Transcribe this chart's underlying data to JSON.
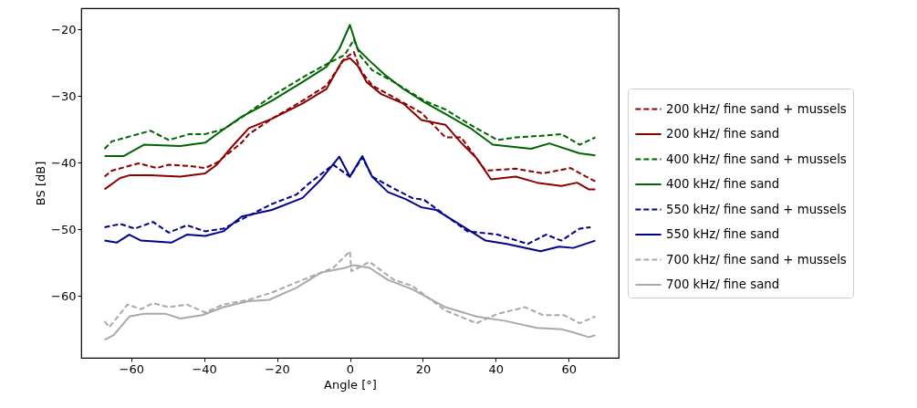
{
  "chart_data": {
    "type": "line",
    "xlabel": "Angle [°]",
    "ylabel": "BS [dB]",
    "xlim": [
      -73.7,
      73.7
    ],
    "ylim": [
      -69.3,
      -16.8
    ],
    "xticks": [
      -60,
      -40,
      -20,
      0,
      20,
      40,
      60
    ],
    "yticks": [
      -60,
      -50,
      -40,
      -30,
      -20
    ],
    "grid": false,
    "legend": "right",
    "marker": "none",
    "series": [
      {
        "name": "200 kHz/ fine sand + mussels",
        "color": "#8b0000",
        "line_style": "dashed",
        "x": [
          -67.3,
          -65.3,
          -58,
          -53,
          -49.7,
          -44,
          -39.7,
          -36.5,
          -29.7,
          -27.7,
          -21.4,
          -13,
          -6.4,
          -1.4,
          1.1,
          2.9,
          6.1,
          12.1,
          19.6,
          26.2,
          30.5,
          37.2,
          45.5,
          53,
          60.5,
          64.8,
          67.3
        ],
        "values": [
          -42.1,
          -41.2,
          -40.1,
          -40.8,
          -40.3,
          -40.5,
          -40.8,
          -40,
          -37,
          -35.7,
          -33.4,
          -30.7,
          -28.4,
          -24.3,
          -23.4,
          -26.1,
          -28.4,
          -30.2,
          -32.5,
          -36.2,
          -36.2,
          -41.2,
          -40.9,
          -41.6,
          -40.8,
          -42.1,
          -42.8
        ]
      },
      {
        "name": "200 kHz/ fine sand",
        "color": "#8b0000",
        "line_style": "solid",
        "x": [
          -67.3,
          -63,
          -60.5,
          -54.7,
          -46.5,
          -39.7,
          -36.5,
          -32.2,
          -27.7,
          -21.4,
          -13,
          -6.4,
          -2.1,
          0,
          2.1,
          4.6,
          8.6,
          14.6,
          19.6,
          26.2,
          30.5,
          34.7,
          38.7,
          45.5,
          51.3,
          58,
          62.3,
          65.5,
          67.3
        ],
        "values": [
          -44,
          -42.3,
          -41.9,
          -41.9,
          -42.1,
          -41.6,
          -40.3,
          -37.5,
          -34.8,
          -33.4,
          -31.1,
          -28.9,
          -24.7,
          -24.3,
          -25.4,
          -27.9,
          -29.7,
          -31.1,
          -33.6,
          -34.3,
          -37,
          -39.3,
          -42.5,
          -42.1,
          -43,
          -43.5,
          -43,
          -44,
          -44
        ]
      },
      {
        "name": "400 kHz/ fine sand + mussels",
        "color": "#006400",
        "line_style": "dashed",
        "x": [
          -67.3,
          -65.3,
          -54.7,
          -49.7,
          -44,
          -39.7,
          -34.7,
          -29.7,
          -21.4,
          -13,
          -6.4,
          -1.4,
          1.1,
          2.9,
          6.1,
          12.1,
          20.4,
          26.2,
          33,
          40.5,
          45.5,
          51.3,
          58,
          63,
          67.3
        ],
        "values": [
          -37.9,
          -36.8,
          -35.2,
          -36.6,
          -35.7,
          -35.7,
          -35,
          -33.2,
          -30,
          -27.2,
          -25.2,
          -23.8,
          -21.5,
          -24,
          -26.1,
          -27.9,
          -30.7,
          -32,
          -34.3,
          -36.6,
          -36.2,
          -36,
          -35.7,
          -37.3,
          -36.2
        ]
      },
      {
        "name": "400 kHz/ fine sand",
        "color": "#006400",
        "line_style": "solid",
        "x": [
          -67.3,
          -62,
          -56.5,
          -46.5,
          -39.7,
          -34.7,
          -29.7,
          -21.4,
          -13,
          -6.4,
          -2.9,
          0,
          2.1,
          5.4,
          9.6,
          14.6,
          20.4,
          26.2,
          33,
          39.2,
          49.7,
          54.7,
          63,
          67.3
        ],
        "values": [
          -39,
          -39,
          -37.3,
          -37.5,
          -37,
          -35,
          -33.1,
          -30.7,
          -27.9,
          -25.6,
          -22.9,
          -19.3,
          -22.9,
          -24.7,
          -26.8,
          -28.9,
          -30.9,
          -32.7,
          -34.8,
          -37.3,
          -37.9,
          -37.1,
          -38.6,
          -38.9
        ]
      },
      {
        "name": "550 kHz/ fine sand + mussels",
        "color": "#00008b",
        "line_style": "dashed",
        "x": [
          -67.3,
          -63,
          -59,
          -54,
          -49.7,
          -44.7,
          -39.7,
          -34.7,
          -21.4,
          -14.7,
          -11.4,
          -4.6,
          0,
          3.4,
          6.1,
          12.1,
          17.1,
          20.4,
          32.2,
          40.5,
          48.8,
          53.8,
          58,
          63,
          66
        ],
        "values": [
          -49.7,
          -49.2,
          -49.9,
          -48.9,
          -50.5,
          -49.4,
          -50.3,
          -49.9,
          -46.2,
          -44.8,
          -43.2,
          -40.3,
          -42.1,
          -39.2,
          -42.1,
          -43.9,
          -45.3,
          -45.6,
          -50.3,
          -50.8,
          -52.2,
          -50.8,
          -51.7,
          -49.9,
          -49.7
        ]
      },
      {
        "name": "550 kHz/ fine sand",
        "color": "#00008b",
        "line_style": "solid",
        "x": [
          -67.3,
          -64,
          -60.5,
          -57.3,
          -49,
          -44.7,
          -39.7,
          -34.7,
          -29.7,
          -21.4,
          -13,
          -7.9,
          -2.9,
          0,
          3.4,
          6.1,
          10.4,
          15.4,
          19.6,
          23.7,
          30.5,
          37.2,
          43,
          52.3,
          57.3,
          61.3,
          67.3
        ],
        "values": [
          -51.7,
          -52,
          -50.8,
          -51.7,
          -52,
          -50.8,
          -51,
          -50.3,
          -48.1,
          -47.1,
          -45.3,
          -42.5,
          -39.1,
          -42.1,
          -39,
          -42.1,
          -44.4,
          -45.5,
          -46.7,
          -47.1,
          -49.4,
          -51.7,
          -52.2,
          -53.3,
          -52.6,
          -52.8,
          -51.7
        ]
      },
      {
        "name": "700 kHz/ fine sand + mussels",
        "color": "#a9a9a9",
        "line_style": "dashed",
        "x": [
          -67.3,
          -66,
          -61,
          -57.3,
          -54,
          -49.7,
          -44.7,
          -39.7,
          -34.7,
          -27.9,
          -21.4,
          -13,
          -4.6,
          0,
          0.4,
          5.4,
          12.1,
          17.1,
          26.2,
          34.7,
          40.5,
          48,
          53,
          58.7,
          63,
          67.3
        ],
        "values": [
          -63.8,
          -64.7,
          -61.3,
          -62,
          -61.1,
          -61.7,
          -61.3,
          -62.5,
          -61.3,
          -60.6,
          -59.5,
          -57.6,
          -55.8,
          -53.3,
          -56.3,
          -54.9,
          -57.6,
          -58.5,
          -62.2,
          -64.1,
          -62.7,
          -61.7,
          -62.9,
          -62.9,
          -64.1,
          -63.1
        ]
      },
      {
        "name": "700 kHz/ fine sand",
        "color": "#a9a9a9",
        "line_style": "solid",
        "x": [
          -67.3,
          -64.8,
          -60.5,
          -56.5,
          -50.5,
          -46.5,
          -40.5,
          -34.7,
          -27.9,
          -22.2,
          -14.7,
          -7.9,
          -1.4,
          1.1,
          5.4,
          10.4,
          17.1,
          26.2,
          34.7,
          43,
          51.3,
          58,
          61.3,
          65.5,
          67.3
        ],
        "values": [
          -66.6,
          -65.9,
          -63.1,
          -62.7,
          -62.7,
          -63.4,
          -62.9,
          -61.7,
          -60.8,
          -60.6,
          -58.8,
          -56.5,
          -55.8,
          -55.4,
          -55.8,
          -57.6,
          -59,
          -61.7,
          -63.1,
          -63.8,
          -64.8,
          -65,
          -65.5,
          -66.2,
          -65.9
        ]
      }
    ]
  }
}
